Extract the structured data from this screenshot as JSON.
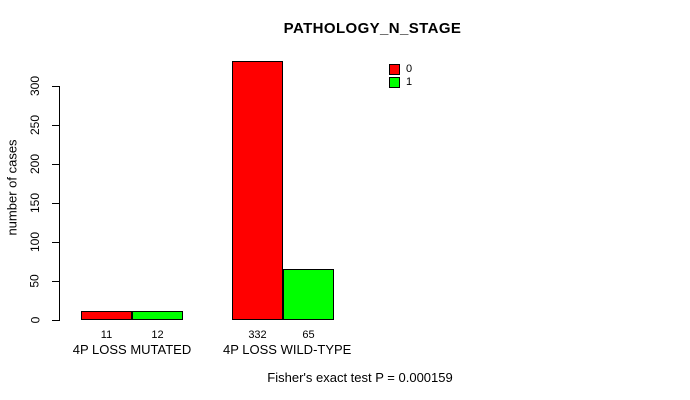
{
  "chart_data": {
    "type": "bar",
    "title": "PATHOLOGY_N_STAGE",
    "ylabel": "number of cases",
    "xlabel": "",
    "ylim": [
      0,
      300
    ],
    "yticks": [
      0,
      50,
      100,
      150,
      200,
      250,
      300
    ],
    "categories": [
      "4P LOSS MUTATED",
      "4P LOSS WILD-TYPE"
    ],
    "series": [
      {
        "name": "0",
        "color": "#ff0000",
        "values": [
          11,
          332
        ]
      },
      {
        "name": "1",
        "color": "#00ff00",
        "values": [
          12,
          65
        ]
      }
    ],
    "grid": false,
    "legend_position": "top-right",
    "footnote": "Fisher's exact test P = 0.000159"
  }
}
